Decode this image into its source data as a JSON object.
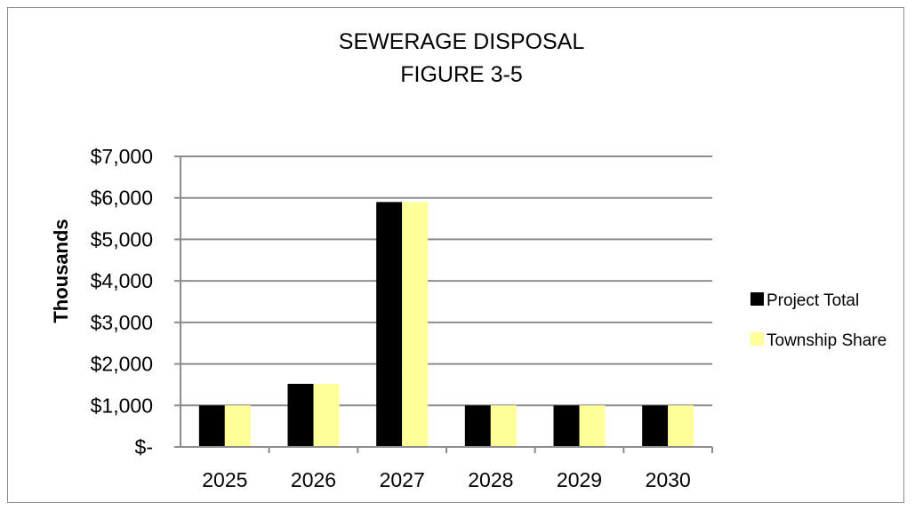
{
  "chart_data": {
    "type": "bar",
    "title": "SEWERAGE DISPOSAL",
    "subtitle": "FIGURE 3-5",
    "ylabel": "Thousands",
    "xlabel": "",
    "categories": [
      "2025",
      "2026",
      "2027",
      "2028",
      "2029",
      "2030"
    ],
    "series": [
      {
        "name": "Project Total",
        "color": "#000000",
        "values": [
          1000,
          1520,
          5900,
          1000,
          1000,
          1000
        ]
      },
      {
        "name": "Township Share",
        "color": "#ffff99",
        "values": [
          1000,
          1520,
          5900,
          1000,
          1000,
          1000
        ]
      }
    ],
    "ylim": [
      0,
      7000
    ],
    "yticks": [
      0,
      1000,
      2000,
      3000,
      4000,
      5000,
      6000,
      7000
    ],
    "ytick_labels": [
      "$-",
      "$1,000",
      "$2,000",
      "$3,000",
      "$4,000",
      "$5,000",
      "$6,000",
      "$7,000"
    ],
    "grid": true,
    "legend_position": "right"
  }
}
